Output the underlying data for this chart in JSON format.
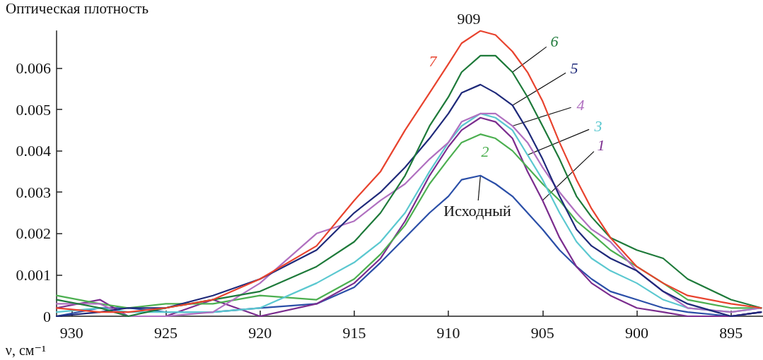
{
  "chart_data": {
    "type": "line",
    "ylabel": "Оптическая плотность",
    "xlabel": "ν, см⁻¹",
    "x": [
      930.8,
      928.5,
      927,
      925,
      922.5,
      920,
      917,
      915,
      913.6,
      912.3,
      911,
      910,
      909.3,
      908.3,
      907.5,
      906.6,
      905.8,
      905,
      904.1,
      903.2,
      902.4,
      901.4,
      900,
      898.6,
      897.3,
      895,
      893.4
    ],
    "series": [
      {
        "name": "Исходный",
        "color": "#2b4fa8",
        "values": [
          0,
          0.0002,
          0.0002,
          0.0001,
          0.0001,
          0.0002,
          0.0003,
          0.0007,
          0.0013,
          0.0019,
          0.0025,
          0.0029,
          0.0033,
          0.0034,
          0.0032,
          0.0029,
          0.0025,
          0.0021,
          0.0016,
          0.0012,
          0.0009,
          0.0006,
          0.0004,
          0.0002,
          0.0001,
          0,
          0.0001
        ]
      },
      {
        "name": "1",
        "color": "#7b2d8e",
        "values": [
          0.0002,
          0.0004,
          0,
          0,
          0.0004,
          0,
          0.0003,
          0.0008,
          0.0014,
          0.0023,
          0.0034,
          0.0041,
          0.0045,
          0.0048,
          0.0047,
          0.0043,
          0.0035,
          0.0028,
          0.0019,
          0.0012,
          0.0008,
          0.0005,
          0.0002,
          0.0001,
          0,
          0,
          0.0001
        ]
      },
      {
        "name": "2",
        "color": "#4caf50",
        "values": [
          0.0005,
          0.0003,
          0.0002,
          0.0003,
          0.0003,
          0.0005,
          0.0004,
          0.0009,
          0.0015,
          0.0022,
          0.0032,
          0.0038,
          0.0042,
          0.0044,
          0.0043,
          0.004,
          0.0036,
          0.0032,
          0.0028,
          0.0023,
          0.002,
          0.0016,
          0.0012,
          0.0008,
          0.0004,
          0.0002,
          0.0002
        ]
      },
      {
        "name": "3",
        "color": "#5bc8d0",
        "values": [
          0.0001,
          0.0002,
          0.0001,
          0.0001,
          0.0001,
          0.0002,
          0.0008,
          0.0013,
          0.0018,
          0.0025,
          0.0035,
          0.0042,
          0.0046,
          0.0049,
          0.0048,
          0.0045,
          0.0039,
          0.0033,
          0.0025,
          0.0018,
          0.0014,
          0.0011,
          0.0008,
          0.0004,
          0.0002,
          0.0001,
          0.0002
        ]
      },
      {
        "name": "4",
        "color": "#b070c0",
        "values": [
          0.0003,
          0.0003,
          0,
          0,
          0.0001,
          0.0008,
          0.002,
          0.0023,
          0.0028,
          0.0032,
          0.0038,
          0.0042,
          0.0047,
          0.0049,
          0.0049,
          0.0046,
          0.0042,
          0.0036,
          0.003,
          0.0025,
          0.0021,
          0.0018,
          0.0011,
          0.0006,
          0.0002,
          0.0001,
          0.0002
        ]
      },
      {
        "name": "5",
        "color": "#1f2a7a",
        "values": [
          0,
          0.0001,
          0.0002,
          0.0002,
          0.0005,
          0.0009,
          0.0016,
          0.0025,
          0.003,
          0.0036,
          0.0043,
          0.0049,
          0.0054,
          0.0056,
          0.0054,
          0.0051,
          0.0045,
          0.0038,
          0.0029,
          0.0021,
          0.0017,
          0.0014,
          0.0011,
          0.0006,
          0.0003,
          0,
          0.0001
        ]
      },
      {
        "name": "6",
        "color": "#1e7a3a",
        "values": [
          0.0004,
          0.0002,
          0,
          0.0002,
          0.0004,
          0.0006,
          0.0012,
          0.0018,
          0.0025,
          0.0034,
          0.0046,
          0.0053,
          0.0059,
          0.0063,
          0.0063,
          0.0059,
          0.0053,
          0.0046,
          0.0038,
          0.0029,
          0.0024,
          0.0019,
          0.0016,
          0.0014,
          0.0009,
          0.0004,
          0.0002
        ]
      },
      {
        "name": "7",
        "color": "#e8432e",
        "values": [
          0.0002,
          0.0001,
          0.0001,
          0.0002,
          0.0004,
          0.0009,
          0.0017,
          0.0028,
          0.0035,
          0.0045,
          0.0054,
          0.0061,
          0.0066,
          0.0069,
          0.0068,
          0.0064,
          0.0059,
          0.0052,
          0.0042,
          0.0033,
          0.0026,
          0.0019,
          0.0012,
          0.0008,
          0.0005,
          0.0003,
          0.0002
        ]
      }
    ],
    "xlim": [
      930.8,
      893.3
    ],
    "xticks": [
      930,
      925,
      920,
      915,
      910,
      905,
      900,
      895
    ],
    "ylim": [
      0,
      0.0069
    ],
    "yticks": [
      0,
      0.001,
      0.002,
      0.003,
      0.004,
      0.005,
      0.006
    ],
    "annotations": [
      "909"
    ],
    "grid": false,
    "legend": false,
    "marker": "none",
    "line_style": "solid"
  }
}
